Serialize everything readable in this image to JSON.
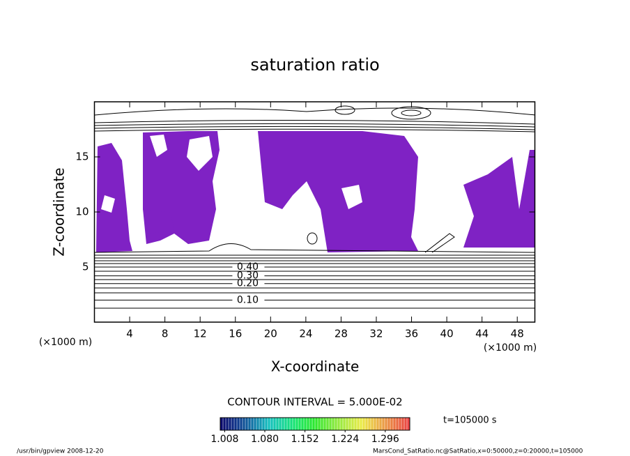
{
  "chart_data": {
    "type": "contour",
    "title": "saturation ratio",
    "xlabel": "X-coordinate",
    "ylabel": "Z-coordinate",
    "x_unit": "(×1000 m)",
    "y_unit": "(×1000 m)",
    "xlim": [
      0,
      50
    ],
    "ylim": [
      0,
      20
    ],
    "xticks": [
      4,
      8,
      12,
      16,
      20,
      24,
      28,
      32,
      36,
      40,
      44,
      48
    ],
    "yticks": [
      5,
      10,
      15
    ],
    "contours": {
      "levels": [
        0.1,
        0.2,
        0.3,
        0.4
      ],
      "value_labels": [
        "0.10",
        "0.20",
        "0.30",
        "0.40"
      ],
      "z": [
        2.0,
        3.5,
        4.2,
        5.0
      ],
      "label_x": 17.4,
      "color": "#000000"
    },
    "fill_color": "#7f22c4",
    "contour_interval": "CONTOUR INTERVAL = 5.000E-02",
    "colorbar": {
      "lim": [
        1.0,
        1.34
      ],
      "ticks": [
        {
          "value": 1.008,
          "label": "1.008"
        },
        {
          "value": 1.08,
          "label": "1.080"
        },
        {
          "value": 1.152,
          "label": "1.152"
        },
        {
          "value": 1.224,
          "label": "1.224"
        },
        {
          "value": 1.296,
          "label": "1.296"
        }
      ]
    },
    "time": "t=105000 s",
    "footer_left": "/usr/bin/gpview  2008-12-20",
    "footer_right": "MarsCond_SatRatio.nc@SatRatio,x=0:50000,z=0:20000,t=105000"
  }
}
